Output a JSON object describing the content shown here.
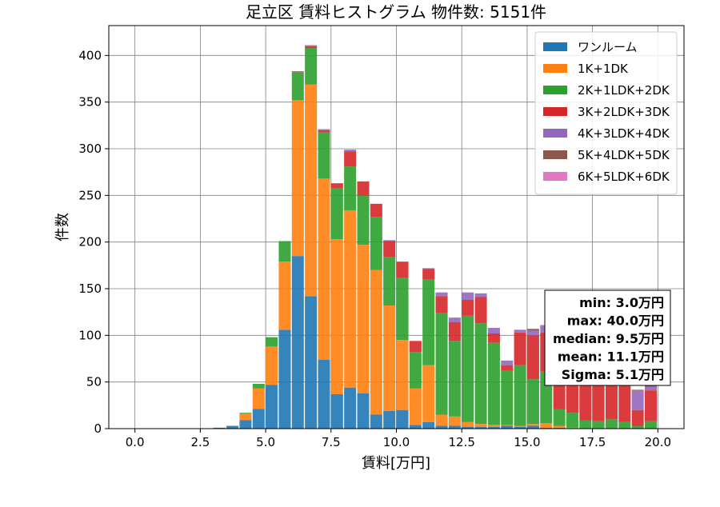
{
  "chart_data": {
    "type": "bar",
    "stacked": true,
    "title": "足立区 賃料ヒストグラム  物件数: 5151件",
    "xlabel": "賃料[万円]",
    "ylabel": "件数",
    "xlim": [
      -1.0,
      21.0
    ],
    "ylim": [
      0,
      432
    ],
    "xticks": [
      0.0,
      2.5,
      5.0,
      7.5,
      10.0,
      12.5,
      15.0,
      17.5,
      20.0
    ],
    "xtick_labels": [
      "0.0",
      "2.5",
      "5.0",
      "7.5",
      "10.0",
      "12.5",
      "15.0",
      "17.5",
      "20.0"
    ],
    "yticks": [
      0,
      50,
      100,
      150,
      200,
      250,
      300,
      350,
      400
    ],
    "ytick_labels": [
      "0",
      "50",
      "100",
      "150",
      "200",
      "250",
      "300",
      "350",
      "400"
    ],
    "bin_width": 0.5,
    "bin_starts": [
      2.5,
      3.0,
      3.5,
      4.0,
      4.5,
      5.0,
      5.5,
      6.0,
      6.5,
      7.0,
      7.5,
      8.0,
      8.5,
      9.0,
      9.5,
      10.0,
      10.5,
      11.0,
      11.5,
      12.0,
      12.5,
      13.0,
      13.5,
      14.0,
      14.5,
      15.0,
      15.5,
      16.0,
      16.5,
      17.0,
      17.5,
      18.0,
      18.5,
      19.0,
      19.5
    ],
    "grid": true,
    "legend_position": "upper right",
    "series": [
      {
        "name": "ワンルーム",
        "color": "#1f77b4",
        "values": [
          0,
          1,
          3,
          9,
          21,
          47,
          106,
          185,
          142,
          74,
          37,
          44,
          38,
          15,
          19,
          20,
          4,
          7,
          3,
          3,
          2,
          2,
          2,
          3,
          2,
          3,
          1,
          1,
          0,
          0,
          0,
          0,
          0,
          0,
          0
        ]
      },
      {
        "name": "1K+1DK",
        "color": "#ff7f0e",
        "values": [
          0,
          0,
          0,
          7,
          22,
          41,
          73,
          167,
          227,
          194,
          166,
          190,
          159,
          155,
          113,
          75,
          39,
          61,
          12,
          10,
          5,
          3,
          2,
          1,
          1,
          2,
          5,
          2,
          1,
          0,
          0,
          0,
          0,
          0,
          0
        ]
      },
      {
        "name": "2K+1LDK+2DK",
        "color": "#2ca02c",
        "values": [
          0,
          0,
          0,
          1,
          5,
          10,
          22,
          30,
          39,
          50,
          55,
          47,
          53,
          57,
          52,
          67,
          39,
          92,
          109,
          81,
          114,
          108,
          88,
          58,
          65,
          48,
          55,
          18,
          16,
          9,
          8,
          10,
          7,
          3,
          8
        ]
      },
      {
        "name": "3K+2LDK+3DK",
        "color": "#d62728",
        "values": [
          0,
          0,
          0,
          0,
          0,
          0,
          0,
          1,
          2,
          2,
          5,
          16,
          15,
          14,
          17,
          17,
          12,
          11,
          18,
          20,
          17,
          28,
          10,
          6,
          35,
          47,
          42,
          44,
          45,
          45,
          38,
          43,
          46,
          17,
          33
        ]
      },
      {
        "name": "4K+3LDK+4DK",
        "color": "#9467bd",
        "values": [
          0,
          0,
          0,
          0,
          0,
          0,
          0,
          0,
          1,
          1,
          0,
          2,
          0,
          0,
          1,
          0,
          0,
          1,
          4,
          5,
          8,
          4,
          6,
          5,
          3,
          5,
          8,
          7,
          5,
          4,
          6,
          3,
          5,
          20,
          4
        ]
      },
      {
        "name": "5K+4LDK+5DK",
        "color": "#8c564b",
        "values": [
          0,
          0,
          0,
          0,
          0,
          0,
          0,
          0,
          0,
          0,
          0,
          0,
          0,
          0,
          0,
          0,
          0,
          0,
          0,
          0,
          0,
          0,
          0,
          0,
          0,
          2,
          0,
          1,
          0,
          0,
          1,
          0,
          1,
          1,
          2
        ]
      },
      {
        "name": "6K+5LDK+6DK",
        "color": "#e377c2",
        "values": [
          0,
          0,
          0,
          0,
          0,
          0,
          0,
          0,
          0,
          0,
          0,
          0,
          0,
          0,
          0,
          0,
          0,
          0,
          0,
          0,
          0,
          0,
          0,
          0,
          0,
          0,
          0,
          0,
          0,
          0,
          0,
          0,
          0,
          1,
          0
        ]
      }
    ],
    "stats": [
      "min: 3.0万円",
      "max: 40.0万円",
      "median: 9.5万円",
      "mean: 11.1万円",
      "Sigma: 5.1万円"
    ]
  }
}
